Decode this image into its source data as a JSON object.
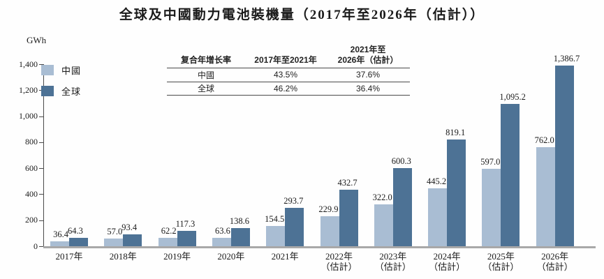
{
  "title": "全球及中國動力電池裝機量（2017年至2026年（估計））",
  "axis": {
    "unit": "GWh"
  },
  "legend": {
    "items": [
      {
        "label": "中國",
        "color": "#a9bdd3"
      },
      {
        "label": "全球",
        "color": "#4d7295"
      }
    ]
  },
  "growth_table": {
    "col1_header": "复合年增长率",
    "col2_header": "2017年至2021年",
    "col3_header_line1": "2021年至",
    "col3_header_line2": "2026年（估計）",
    "rows": [
      {
        "name": "中國",
        "cagr_2017_2021": "43.5%",
        "cagr_2021_2026": "37.6%"
      },
      {
        "name": "全球",
        "cagr_2017_2021": "46.2%",
        "cagr_2021_2026": "36.4%"
      }
    ]
  },
  "chart_data": {
    "type": "bar",
    "title": "全球及中國動力電池裝機量（2017年至2026年（估計））",
    "ylabel": "GWh",
    "xlabel": "",
    "ylim": [
      0,
      1400
    ],
    "grid": false,
    "legend_position": "top-left",
    "yticks": [
      {
        "value": 0,
        "label": "0"
      },
      {
        "value": 200,
        "label": "200"
      },
      {
        "value": 400,
        "label": "400"
      },
      {
        "value": 600,
        "label": "600"
      },
      {
        "value": 800,
        "label": "800"
      },
      {
        "value": 1000,
        "label": "1,000"
      },
      {
        "value": 1200,
        "label": "1,200"
      },
      {
        "value": 1400,
        "label": "1,400"
      }
    ],
    "categories": [
      {
        "label": "2017年",
        "note": ""
      },
      {
        "label": "2018年",
        "note": ""
      },
      {
        "label": "2019年",
        "note": ""
      },
      {
        "label": "2020年",
        "note": ""
      },
      {
        "label": "2021年",
        "note": ""
      },
      {
        "label": "2022年",
        "note": "（估計）"
      },
      {
        "label": "2023年",
        "note": "（估計）"
      },
      {
        "label": "2024年",
        "note": "（估計）"
      },
      {
        "label": "2025年",
        "note": "（估計）"
      },
      {
        "label": "2026年",
        "note": "（估計）"
      }
    ],
    "series": [
      {
        "name": "中國",
        "color": "#a9bdd3",
        "values": [
          36.4,
          57.0,
          62.2,
          63.6,
          154.5,
          229.9,
          322.0,
          445.2,
          597.0,
          762.0
        ],
        "value_labels": [
          "36.4",
          "57.0",
          "62.2",
          "63.6",
          "154.5",
          "229.9",
          "322.0",
          "445.2",
          "597.0",
          "762.0"
        ]
      },
      {
        "name": "全球",
        "color": "#4d7295",
        "values": [
          64.3,
          93.4,
          117.3,
          138.6,
          293.7,
          432.7,
          600.3,
          819.1,
          1095.2,
          1386.7
        ],
        "value_labels": [
          "64.3",
          "93.4",
          "117.3",
          "138.6",
          "293.7",
          "432.7",
          "600.3",
          "819.1",
          "1,095.2",
          "1,386.7"
        ]
      }
    ]
  }
}
